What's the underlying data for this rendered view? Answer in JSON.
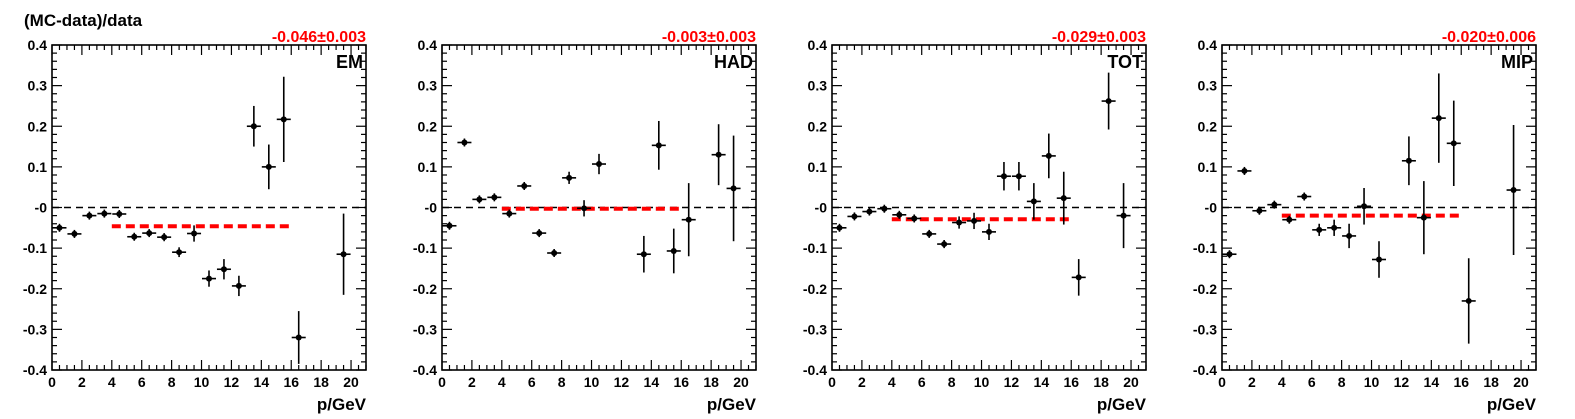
{
  "figure": {
    "ylabel": "(MC-data)/data",
    "xlabel": "p/GeV",
    "colors": {
      "points": "#000000",
      "fit": "#ff0000",
      "frame": "#000000"
    }
  },
  "chart_data": [
    {
      "type": "scatter",
      "panel_label": "EM",
      "fit_text": "-0.046±0.003",
      "fit": {
        "value": -0.046,
        "x_range": [
          4,
          16
        ]
      },
      "xlim": [
        0,
        21
      ],
      "ylim": [
        -0.4,
        0.4
      ],
      "xticks": [
        0,
        2,
        4,
        6,
        8,
        10,
        12,
        14,
        16,
        18,
        20
      ],
      "yticks": [
        -0.4,
        -0.3,
        -0.2,
        -0.1,
        0,
        0.1,
        0.2,
        0.3,
        0.4
      ],
      "ytick_labels": [
        "-0.4",
        "-0.3",
        "-0.2",
        "-0.1",
        "-0",
        "0.1",
        "0.2",
        "0.3",
        "0.4"
      ],
      "points": [
        {
          "x": 0.5,
          "y": -0.05,
          "err": 0.004
        },
        {
          "x": 1.5,
          "y": -0.065,
          "err": 0.004
        },
        {
          "x": 2.5,
          "y": -0.02,
          "err": 0.004
        },
        {
          "x": 3.5,
          "y": -0.015,
          "err": 0.004
        },
        {
          "x": 4.5,
          "y": -0.016,
          "err": 0.005
        },
        {
          "x": 5.5,
          "y": -0.072,
          "err": 0.006
        },
        {
          "x": 6.5,
          "y": -0.063,
          "err": 0.007
        },
        {
          "x": 7.5,
          "y": -0.073,
          "err": 0.01
        },
        {
          "x": 8.5,
          "y": -0.11,
          "err": 0.012
        },
        {
          "x": 9.5,
          "y": -0.064,
          "err": 0.02
        },
        {
          "x": 10.5,
          "y": -0.175,
          "err": 0.02
        },
        {
          "x": 11.5,
          "y": -0.152,
          "err": 0.025
        },
        {
          "x": 12.5,
          "y": -0.193,
          "err": 0.025
        },
        {
          "x": 13.5,
          "y": 0.2,
          "err": 0.05
        },
        {
          "x": 14.5,
          "y": 0.1,
          "err": 0.055
        },
        {
          "x": 15.5,
          "y": 0.217,
          "err": 0.105
        },
        {
          "x": 16.5,
          "y": -0.32,
          "err": 0.065
        },
        {
          "x": 19.5,
          "y": -0.115,
          "err": 0.1
        }
      ]
    },
    {
      "type": "scatter",
      "panel_label": "HAD",
      "fit_text": "-0.003±0.003",
      "fit": {
        "value": -0.003,
        "x_range": [
          4,
          16
        ]
      },
      "xlim": [
        0,
        21
      ],
      "ylim": [
        -0.4,
        0.4
      ],
      "xticks": [
        0,
        2,
        4,
        6,
        8,
        10,
        12,
        14,
        16,
        18,
        20
      ],
      "yticks": [
        -0.4,
        -0.3,
        -0.2,
        -0.1,
        0,
        0.1,
        0.2,
        0.3,
        0.4
      ],
      "ytick_labels": [
        "-0.4",
        "-0.3",
        "-0.2",
        "-0.1",
        "-0",
        "0.1",
        "0.2",
        "0.3",
        "0.4"
      ],
      "points": [
        {
          "x": 0.5,
          "y": -0.045,
          "err": 0.004
        },
        {
          "x": 1.5,
          "y": 0.16,
          "err": 0.004
        },
        {
          "x": 2.5,
          "y": 0.02,
          "err": 0.004
        },
        {
          "x": 3.5,
          "y": 0.025,
          "err": 0.004
        },
        {
          "x": 4.5,
          "y": -0.015,
          "err": 0.005
        },
        {
          "x": 5.5,
          "y": 0.053,
          "err": 0.005
        },
        {
          "x": 6.5,
          "y": -0.063,
          "err": 0.006
        },
        {
          "x": 7.5,
          "y": -0.112,
          "err": 0.008
        },
        {
          "x": 8.5,
          "y": 0.073,
          "err": 0.015
        },
        {
          "x": 9.5,
          "y": -0.002,
          "err": 0.02
        },
        {
          "x": 10.5,
          "y": 0.107,
          "err": 0.025
        },
        {
          "x": 13.5,
          "y": -0.115,
          "err": 0.045
        },
        {
          "x": 14.5,
          "y": 0.153,
          "err": 0.06
        },
        {
          "x": 15.5,
          "y": -0.107,
          "err": 0.055
        },
        {
          "x": 16.5,
          "y": -0.03,
          "err": 0.09
        },
        {
          "x": 18.5,
          "y": 0.13,
          "err": 0.075
        },
        {
          "x": 19.5,
          "y": 0.047,
          "err": 0.13
        }
      ]
    },
    {
      "type": "scatter",
      "panel_label": "TOT",
      "fit_text": "-0.029±0.003",
      "fit": {
        "value": -0.029,
        "x_range": [
          4,
          16
        ]
      },
      "xlim": [
        0,
        21
      ],
      "ylim": [
        -0.4,
        0.4
      ],
      "xticks": [
        0,
        2,
        4,
        6,
        8,
        10,
        12,
        14,
        16,
        18,
        20
      ],
      "yticks": [
        -0.4,
        -0.3,
        -0.2,
        -0.1,
        0,
        0.1,
        0.2,
        0.3,
        0.4
      ],
      "ytick_labels": [
        "-0.4",
        "-0.3",
        "-0.2",
        "-0.1",
        "-0",
        "0.1",
        "0.2",
        "0.3",
        "0.4"
      ],
      "points": [
        {
          "x": 0.5,
          "y": -0.05,
          "err": 0.004
        },
        {
          "x": 1.5,
          "y": -0.022,
          "err": 0.004
        },
        {
          "x": 2.5,
          "y": -0.01,
          "err": 0.004
        },
        {
          "x": 3.5,
          "y": -0.003,
          "err": 0.004
        },
        {
          "x": 4.5,
          "y": -0.018,
          "err": 0.004
        },
        {
          "x": 5.5,
          "y": -0.027,
          "err": 0.005
        },
        {
          "x": 6.5,
          "y": -0.065,
          "err": 0.006
        },
        {
          "x": 7.5,
          "y": -0.09,
          "err": 0.01
        },
        {
          "x": 8.5,
          "y": -0.037,
          "err": 0.015
        },
        {
          "x": 9.5,
          "y": -0.033,
          "err": 0.02
        },
        {
          "x": 10.5,
          "y": -0.06,
          "err": 0.02
        },
        {
          "x": 11.5,
          "y": 0.077,
          "err": 0.035
        },
        {
          "x": 12.5,
          "y": 0.077,
          "err": 0.035
        },
        {
          "x": 13.5,
          "y": 0.015,
          "err": 0.045
        },
        {
          "x": 14.5,
          "y": 0.127,
          "err": 0.055
        },
        {
          "x": 15.5,
          "y": 0.023,
          "err": 0.065
        },
        {
          "x": 16.5,
          "y": -0.172,
          "err": 0.045
        },
        {
          "x": 18.5,
          "y": 0.262,
          "err": 0.07
        },
        {
          "x": 19.5,
          "y": -0.02,
          "err": 0.08
        }
      ]
    },
    {
      "type": "scatter",
      "panel_label": "MIP",
      "fit_text": "-0.020±0.006",
      "fit": {
        "value": -0.02,
        "x_range": [
          4,
          16
        ]
      },
      "xlim": [
        0,
        21
      ],
      "ylim": [
        -0.4,
        0.4
      ],
      "xticks": [
        0,
        2,
        4,
        6,
        8,
        10,
        12,
        14,
        16,
        18,
        20
      ],
      "yticks": [
        -0.4,
        -0.3,
        -0.2,
        -0.1,
        0,
        0.1,
        0.2,
        0.3,
        0.4
      ],
      "ytick_labels": [
        "-0.4",
        "-0.3",
        "-0.2",
        "-0.1",
        "-0",
        "0.1",
        "0.2",
        "0.3",
        "0.4"
      ],
      "points": [
        {
          "x": 0.5,
          "y": -0.115,
          "err": 0.004
        },
        {
          "x": 1.5,
          "y": 0.09,
          "err": 0.004
        },
        {
          "x": 2.5,
          "y": -0.008,
          "err": 0.004
        },
        {
          "x": 3.5,
          "y": 0.007,
          "err": 0.004
        },
        {
          "x": 4.5,
          "y": -0.03,
          "err": 0.006
        },
        {
          "x": 5.5,
          "y": 0.027,
          "err": 0.008
        },
        {
          "x": 6.5,
          "y": -0.055,
          "err": 0.015
        },
        {
          "x": 7.5,
          "y": -0.05,
          "err": 0.02
        },
        {
          "x": 8.5,
          "y": -0.07,
          "err": 0.03
        },
        {
          "x": 9.5,
          "y": 0.003,
          "err": 0.045
        },
        {
          "x": 10.5,
          "y": -0.128,
          "err": 0.045
        },
        {
          "x": 12.5,
          "y": 0.115,
          "err": 0.06
        },
        {
          "x": 13.5,
          "y": -0.025,
          "err": 0.09
        },
        {
          "x": 14.5,
          "y": 0.22,
          "err": 0.11
        },
        {
          "x": 15.5,
          "y": 0.158,
          "err": 0.105
        },
        {
          "x": 16.5,
          "y": -0.23,
          "err": 0.105
        },
        {
          "x": 19.5,
          "y": 0.043,
          "err": 0.16
        }
      ]
    }
  ]
}
